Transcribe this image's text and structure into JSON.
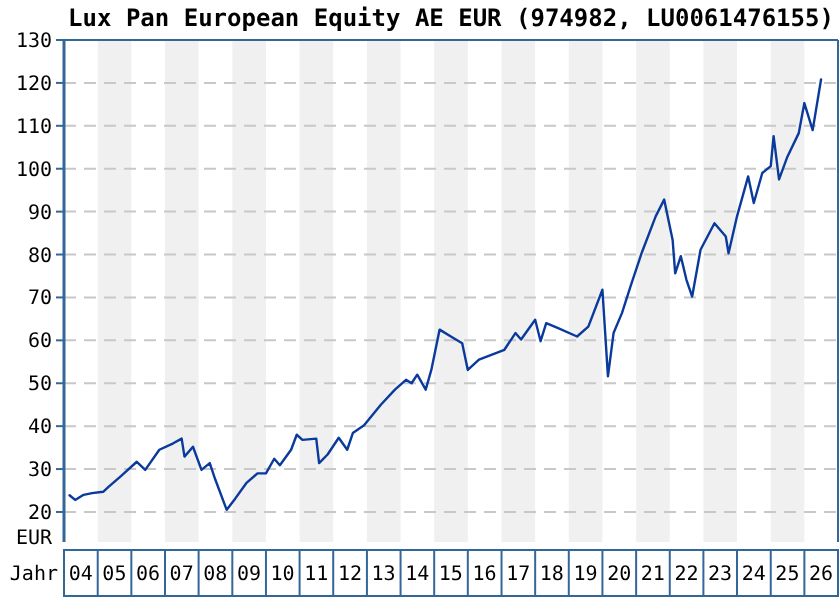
{
  "chart_data": {
    "type": "line",
    "title": "Lux Pan European Equity AE EUR (974982, LU0061476155)",
    "xlabel": "Jahr",
    "ylabel": "EUR",
    "x": [
      "2004-03",
      "2004-05",
      "2004-08",
      "2004-11",
      "2005-03",
      "2005-05",
      "2005-09",
      "2006-03",
      "2006-06",
      "2006-11",
      "2007-04",
      "2007-07",
      "2007-08",
      "2007-11",
      "2008-02",
      "2008-05",
      "2008-07",
      "2008-11",
      "2009-02",
      "2009-06",
      "2009-10",
      "2010-01",
      "2010-04",
      "2010-06",
      "2010-10",
      "2010-12",
      "2011-02",
      "2011-07",
      "2011-08",
      "2011-11",
      "2012-03",
      "2012-06",
      "2012-08",
      "2012-12",
      "2013-06",
      "2013-11",
      "2014-03",
      "2014-05",
      "2014-07",
      "2014-10",
      "2014-12",
      "2015-03",
      "2015-07",
      "2015-11",
      "2016-01",
      "2016-05",
      "2017-02",
      "2017-06",
      "2017-08",
      "2018-01",
      "2018-03",
      "2018-05",
      "2018-09",
      "2019-04",
      "2019-08",
      "2020-01",
      "2020-03",
      "2020-05",
      "2020-08",
      "2020-11",
      "2021-03",
      "2021-08",
      "2021-11",
      "2022-02",
      "2022-03",
      "2022-05",
      "2022-07",
      "2022-09",
      "2022-12",
      "2023-05",
      "2023-09",
      "2023-10",
      "2024-01",
      "2024-05",
      "2024-07",
      "2024-10",
      "2025-01",
      "2025-02",
      "2025-04",
      "2025-07",
      "2025-11",
      "2026-01",
      "2026-04",
      "2026-07"
    ],
    "series": [
      {
        "color": "#0a3a9c",
        "values": [
          23.9,
          22.8,
          24,
          24.4,
          24.7,
          25.9,
          28.2,
          31.7,
          29.8,
          34.5,
          36,
          37.1,
          32.9,
          35.2,
          29.8,
          31.4,
          27.5,
          20.5,
          23.1,
          26.7,
          29,
          29,
          32.4,
          30.9,
          34.5,
          38,
          36.8,
          37.1,
          31.4,
          33.4,
          37.3,
          34.5,
          38.4,
          40.2,
          45,
          48.5,
          50.8,
          50,
          52,
          48.5,
          53.1,
          62.5,
          60.9,
          59.3,
          53.1,
          55.5,
          57.8,
          61.7,
          60.2,
          64.8,
          59.8,
          64,
          62.9,
          60.9,
          63.2,
          71.8,
          51.6,
          61.7,
          66.4,
          72.6,
          80.3,
          88.9,
          92.8,
          83.4,
          75.6,
          79.6,
          74.1,
          70.2,
          81.1,
          87.3,
          84.2,
          80.3,
          88.9,
          98.2,
          92,
          99,
          100.6,
          107.6,
          97.5,
          102.8,
          108.3,
          115.3,
          109,
          120.8
        ]
      }
    ],
    "xlim": [
      "2004-01",
      "2027-01"
    ],
    "xticks": [
      {
        "value": "2004-07",
        "label": "04"
      },
      {
        "value": "2005-07",
        "label": "05"
      },
      {
        "value": "2006-07",
        "label": "06"
      },
      {
        "value": "2007-07",
        "label": "07"
      },
      {
        "value": "2008-07",
        "label": "08"
      },
      {
        "value": "2009-07",
        "label": "09"
      },
      {
        "value": "2010-07",
        "label": "10"
      },
      {
        "value": "2011-07",
        "label": "11"
      },
      {
        "value": "2012-07",
        "label": "12"
      },
      {
        "value": "2013-07",
        "label": "13"
      },
      {
        "value": "2014-07",
        "label": "14"
      },
      {
        "value": "2015-07",
        "label": "15"
      },
      {
        "value": "2016-07",
        "label": "16"
      },
      {
        "value": "2017-07",
        "label": "17"
      },
      {
        "value": "2018-07",
        "label": "18"
      },
      {
        "value": "2019-07",
        "label": "19"
      },
      {
        "value": "2020-07",
        "label": "20"
      },
      {
        "value": "2021-07",
        "label": "21"
      },
      {
        "value": "2022-07",
        "label": "22"
      },
      {
        "value": "2023-07",
        "label": "23"
      },
      {
        "value": "2024-07",
        "label": "24"
      },
      {
        "value": "2025-07",
        "label": "25"
      },
      {
        "value": "2026-07",
        "label": "26"
      }
    ],
    "ylim": [
      13,
      130
    ],
    "yticks": [
      20,
      30,
      40,
      50,
      60,
      70,
      80,
      90,
      100,
      110,
      120,
      130
    ],
    "grid": "y",
    "line_style": "solid",
    "bands": [
      {
        "axis": "x",
        "from": "2005",
        "to": "2006",
        "color": "#f0f0f0"
      },
      {
        "axis": "x",
        "from": "2007",
        "to": "2008",
        "color": "#f0f0f0"
      },
      {
        "axis": "x",
        "from": "2009",
        "to": "2010",
        "color": "#f0f0f0"
      },
      {
        "axis": "x",
        "from": "2011",
        "to": "2012",
        "color": "#f0f0f0"
      },
      {
        "axis": "x",
        "from": "2013",
        "to": "2014",
        "color": "#f0f0f0"
      },
      {
        "axis": "x",
        "from": "2015",
        "to": "2016",
        "color": "#f0f0f0"
      },
      {
        "axis": "x",
        "from": "2017",
        "to": "2018",
        "color": "#f0f0f0"
      },
      {
        "axis": "x",
        "from": "2019",
        "to": "2020",
        "color": "#f0f0f0"
      },
      {
        "axis": "x",
        "from": "2021",
        "to": "2022",
        "color": "#f0f0f0"
      },
      {
        "axis": "x",
        "from": "2023",
        "to": "2024",
        "color": "#f0f0f0"
      },
      {
        "axis": "x",
        "from": "2025",
        "to": "2026",
        "color": "#f0f0f0"
      }
    ]
  }
}
